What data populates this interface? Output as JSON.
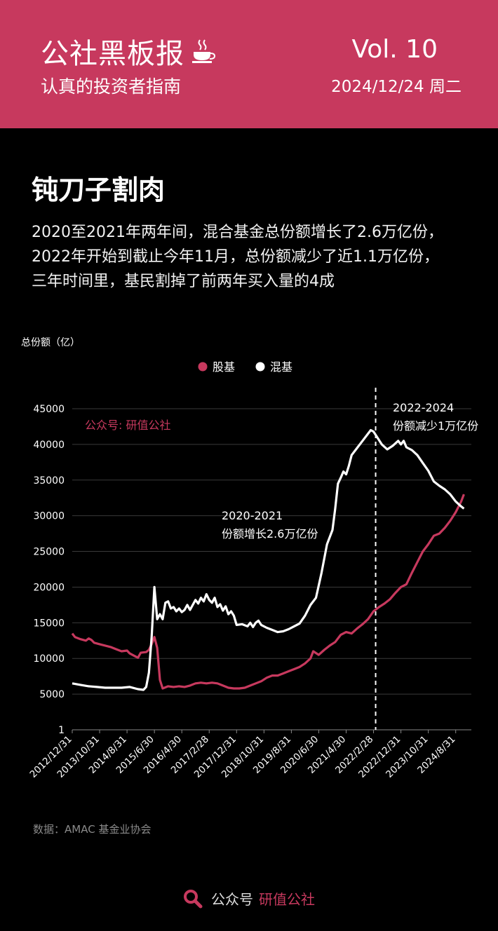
{
  "header": {
    "brand": "公社黑板报",
    "tagline": "认真的投资者指南",
    "volume": "Vol. 10",
    "date": "2024/12/24 周二",
    "accent_color": "#c7395e",
    "icon": "coffee-cup-icon"
  },
  "article": {
    "title": "钝刀子割肉",
    "lines": [
      "2020至2021年两年间，混合基金总份额增长了2.6万亿份，",
      "2022年开始到截止今年11月，总份额减少了近1.1万亿份，",
      "三年时间里，基民割掉了前两年买入量的4成"
    ]
  },
  "chart_data": {
    "type": "line",
    "ylabel": "总份额（亿）",
    "legend_position": "top-center",
    "grid": true,
    "yticks": [
      "45000",
      "40000",
      "35000",
      "30000",
      "25000",
      "20000",
      "15000",
      "10000",
      "5000",
      "1"
    ],
    "ylim": [
      1,
      46000
    ],
    "x_tick_labels": [
      "2012/12/31",
      "2013/10/31",
      "2014/8/31",
      "2015/6/30",
      "2016/4/30",
      "2017/2/28",
      "2017/12/31",
      "2018/10/31",
      "2019/8/31",
      "2020/6/30",
      "2021/4/30",
      "2022/2/28",
      "2022/12/31",
      "2023/10/31",
      "2024/8/31"
    ],
    "watermark": "公众号: 研值公社",
    "series": [
      {
        "name": "股基",
        "color": "#c7395e",
        "points": [
          [
            "2012-12",
            13500
          ],
          [
            "2013-01",
            13000
          ],
          [
            "2013-03",
            12700
          ],
          [
            "2013-05",
            12500
          ],
          [
            "2013-06",
            12800
          ],
          [
            "2013-07",
            12600
          ],
          [
            "2013-08",
            12200
          ],
          [
            "2013-10",
            12000
          ],
          [
            "2013-12",
            11800
          ],
          [
            "2014-02",
            11600
          ],
          [
            "2014-04",
            11300
          ],
          [
            "2014-06",
            11000
          ],
          [
            "2014-08",
            11100
          ],
          [
            "2014-09",
            10700
          ],
          [
            "2014-11",
            10300
          ],
          [
            "2014-12",
            10100
          ],
          [
            "2015-01",
            10800
          ],
          [
            "2015-03",
            10900
          ],
          [
            "2015-04",
            11200
          ],
          [
            "2015-05",
            12000
          ],
          [
            "2015-06",
            13000
          ],
          [
            "2015-07",
            11500
          ],
          [
            "2015-08",
            7000
          ],
          [
            "2015-09",
            5800
          ],
          [
            "2015-11",
            6100
          ],
          [
            "2016-01",
            6000
          ],
          [
            "2016-03",
            6100
          ],
          [
            "2016-05",
            6000
          ],
          [
            "2016-07",
            6200
          ],
          [
            "2016-09",
            6500
          ],
          [
            "2016-11",
            6600
          ],
          [
            "2017-01",
            6500
          ],
          [
            "2017-03",
            6600
          ],
          [
            "2017-05",
            6500
          ],
          [
            "2017-07",
            6200
          ],
          [
            "2017-09",
            5900
          ],
          [
            "2017-11",
            5800
          ],
          [
            "2018-01",
            5800
          ],
          [
            "2018-03",
            5900
          ],
          [
            "2018-05",
            6200
          ],
          [
            "2018-07",
            6500
          ],
          [
            "2018-09",
            6800
          ],
          [
            "2018-11",
            7300
          ],
          [
            "2019-01",
            7600
          ],
          [
            "2019-03",
            7600
          ],
          [
            "2019-05",
            7900
          ],
          [
            "2019-07",
            8200
          ],
          [
            "2019-09",
            8500
          ],
          [
            "2019-11",
            8800
          ],
          [
            "2020-01",
            9300
          ],
          [
            "2020-03",
            10000
          ],
          [
            "2020-04",
            11000
          ],
          [
            "2020-06",
            10500
          ],
          [
            "2020-08",
            11200
          ],
          [
            "2020-10",
            11800
          ],
          [
            "2020-12",
            12300
          ],
          [
            "2021-02",
            13300
          ],
          [
            "2021-04",
            13700
          ],
          [
            "2021-06",
            13500
          ],
          [
            "2021-08",
            14200
          ],
          [
            "2021-10",
            14800
          ],
          [
            "2021-12",
            15500
          ],
          [
            "2022-02",
            16600
          ],
          [
            "2022-04",
            17200
          ],
          [
            "2022-06",
            17700
          ],
          [
            "2022-08",
            18300
          ],
          [
            "2022-10",
            19200
          ],
          [
            "2022-12",
            20000
          ],
          [
            "2023-02",
            20400
          ],
          [
            "2023-04",
            22000
          ],
          [
            "2023-06",
            23500
          ],
          [
            "2023-08",
            25000
          ],
          [
            "2023-10",
            26000
          ],
          [
            "2023-12",
            27200
          ],
          [
            "2024-02",
            27500
          ],
          [
            "2024-04",
            28300
          ],
          [
            "2024-06",
            29300
          ],
          [
            "2024-08",
            30500
          ],
          [
            "2024-10",
            32000
          ],
          [
            "2024-11",
            33000
          ]
        ]
      },
      {
        "name": "混基",
        "color": "#ffffff",
        "points": [
          [
            "2012-12",
            6500
          ],
          [
            "2013-03",
            6300
          ],
          [
            "2013-06",
            6100
          ],
          [
            "2013-09",
            6000
          ],
          [
            "2013-12",
            5900
          ],
          [
            "2014-03",
            5900
          ],
          [
            "2014-06",
            5900
          ],
          [
            "2014-09",
            6000
          ],
          [
            "2014-12",
            5700
          ],
          [
            "2015-02",
            5600
          ],
          [
            "2015-03",
            6000
          ],
          [
            "2015-04",
            8000
          ],
          [
            "2015-05",
            13000
          ],
          [
            "2015-06",
            20000
          ],
          [
            "2015-07",
            15500
          ],
          [
            "2015-08",
            16200
          ],
          [
            "2015-09",
            15500
          ],
          [
            "2015-10",
            17800
          ],
          [
            "2015-11",
            18000
          ],
          [
            "2015-12",
            17000
          ],
          [
            "2016-01",
            17200
          ],
          [
            "2016-02",
            16600
          ],
          [
            "2016-03",
            17000
          ],
          [
            "2016-04",
            16500
          ],
          [
            "2016-05",
            16800
          ],
          [
            "2016-06",
            17500
          ],
          [
            "2016-07",
            16800
          ],
          [
            "2016-08",
            17500
          ],
          [
            "2016-09",
            18200
          ],
          [
            "2016-10",
            17700
          ],
          [
            "2016-11",
            18500
          ],
          [
            "2016-12",
            18000
          ],
          [
            "2017-01",
            19000
          ],
          [
            "2017-02",
            18200
          ],
          [
            "2017-03",
            17800
          ],
          [
            "2017-04",
            18500
          ],
          [
            "2017-05",
            17200
          ],
          [
            "2017-06",
            17600
          ],
          [
            "2017-07",
            16700
          ],
          [
            "2017-08",
            17300
          ],
          [
            "2017-09",
            16200
          ],
          [
            "2017-10",
            16600
          ],
          [
            "2017-11",
            16000
          ],
          [
            "2017-12",
            14700
          ],
          [
            "2018-02",
            14800
          ],
          [
            "2018-04",
            14500
          ],
          [
            "2018-05",
            15000
          ],
          [
            "2018-06",
            14400
          ],
          [
            "2018-07",
            15000
          ],
          [
            "2018-08",
            15300
          ],
          [
            "2018-09",
            14700
          ],
          [
            "2018-11",
            14300
          ],
          [
            "2019-01",
            14000
          ],
          [
            "2019-03",
            13700
          ],
          [
            "2019-05",
            13800
          ],
          [
            "2019-07",
            14100
          ],
          [
            "2019-09",
            14500
          ],
          [
            "2019-11",
            14900
          ],
          [
            "2020-01",
            16000
          ],
          [
            "2020-03",
            17500
          ],
          [
            "2020-05",
            18500
          ],
          [
            "2020-07",
            22000
          ],
          [
            "2020-09",
            26000
          ],
          [
            "2020-11",
            28000
          ],
          [
            "2020-12",
            31000
          ],
          [
            "2021-01",
            34500
          ],
          [
            "2021-02",
            35300
          ],
          [
            "2021-03",
            36200
          ],
          [
            "2021-04",
            35800
          ],
          [
            "2021-05",
            37000
          ],
          [
            "2021-06",
            38500
          ],
          [
            "2021-08",
            39500
          ],
          [
            "2021-10",
            40500
          ],
          [
            "2021-12",
            41500
          ],
          [
            "2022-01",
            42000
          ],
          [
            "2022-02",
            41800
          ],
          [
            "2022-03",
            41200
          ],
          [
            "2022-05",
            40000
          ],
          [
            "2022-07",
            39300
          ],
          [
            "2022-09",
            39800
          ],
          [
            "2022-11",
            40500
          ],
          [
            "2022-12",
            40000
          ],
          [
            "2023-01",
            40500
          ],
          [
            "2023-02",
            39600
          ],
          [
            "2023-04",
            39200
          ],
          [
            "2023-06",
            38500
          ],
          [
            "2023-08",
            37400
          ],
          [
            "2023-10",
            36300
          ],
          [
            "2023-12",
            34800
          ],
          [
            "2024-02",
            34200
          ],
          [
            "2024-04",
            33700
          ],
          [
            "2024-06",
            33000
          ],
          [
            "2024-08",
            32000
          ],
          [
            "2024-10",
            31300
          ],
          [
            "2024-11",
            31000
          ]
        ]
      }
    ],
    "marker": {
      "date": "2022-02-28",
      "style": "dashed"
    },
    "annotations": [
      {
        "lines": [
          "2020-2021",
          "份额增长2.6万亿份"
        ]
      },
      {
        "lines": [
          "2022-2024",
          "份额减少1万亿份"
        ]
      }
    ]
  },
  "source": "数据：AMAC 基金业协会",
  "footer": {
    "prefix": "公众号",
    "name": "研值公社",
    "icon": "search-icon"
  }
}
